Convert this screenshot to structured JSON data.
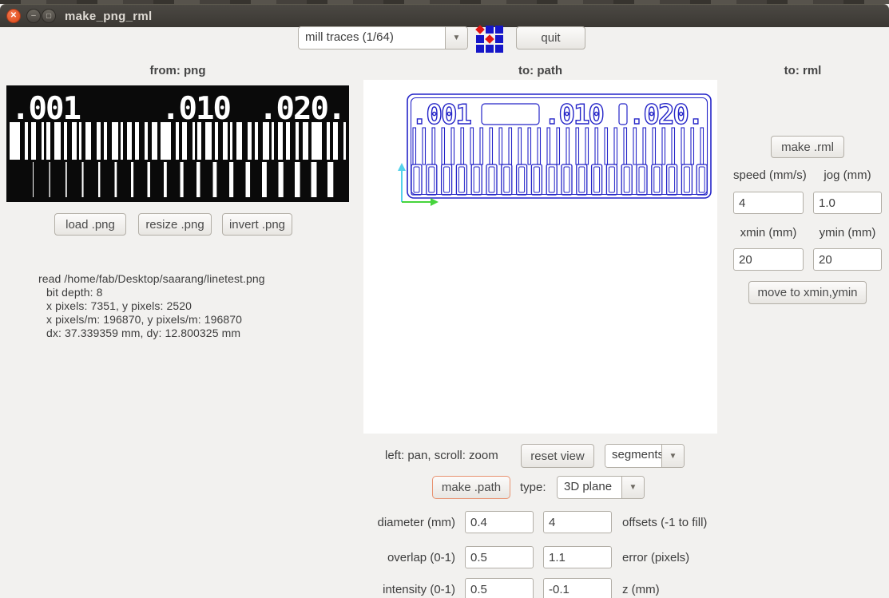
{
  "window": {
    "title": "make_png_rml"
  },
  "toolbar": {
    "process_select": "mill traces (1/64)",
    "quit": "quit"
  },
  "headers": {
    "png": "from: png",
    "path": "to: path",
    "rml": "to: rml"
  },
  "png_panel": {
    "labels": {
      "l1": ".001",
      "l2": ".010",
      "l3": ".020."
    },
    "load": "load .png",
    "resize": "resize .png",
    "invert": "invert .png",
    "info": [
      "read /home/fab/Desktop/saarang/linetest.png",
      "bit depth: 8",
      "x pixels: 7351, y pixels: 2520",
      "x pixels/m: 196870, y pixels/m: 196870",
      "dx: 37.339359 mm, dy: 12.800325 mm"
    ]
  },
  "path_panel": {
    "labels": {
      "l1": ".001",
      "l2": ".010",
      "l3": ".020."
    },
    "hint": "left: pan, scroll: zoom",
    "reset_view": "reset view",
    "display_select": "segments",
    "make_path": "make .path",
    "type_label": "type:",
    "type_select": "3D plane",
    "params": [
      {
        "label": "diameter (mm)",
        "value1": "0.4",
        "value2": "4",
        "label2": "offsets (-1 to fill)"
      },
      {
        "label": "overlap (0-1)",
        "value1": "0.5",
        "value2": "1.1",
        "label2": "error (pixels)"
      },
      {
        "label": "intensity (0-1)",
        "value1": "0.5",
        "value2": "-0.1",
        "label2": "z (mm)"
      }
    ]
  },
  "rml_panel": {
    "make_rml": "make .rml",
    "speed_label": "speed (mm/s)",
    "jog_label": "jog (mm)",
    "speed_value": "4",
    "jog_value": "1.0",
    "xmin_label": "xmin (mm)",
    "ymin_label": "ymin (mm)",
    "xmin_value": "20",
    "ymin_value": "20",
    "move_button": "move to xmin,ymin"
  },
  "colors": {
    "path_blue": "#2424c8",
    "axis_y_cyan": "#55d2ea",
    "axis_x_green": "#46d43c",
    "icon_blue": "#1616c8",
    "icon_red": "#e01414",
    "close_orange": "#dd4814",
    "focus_orange": "#e89270"
  }
}
